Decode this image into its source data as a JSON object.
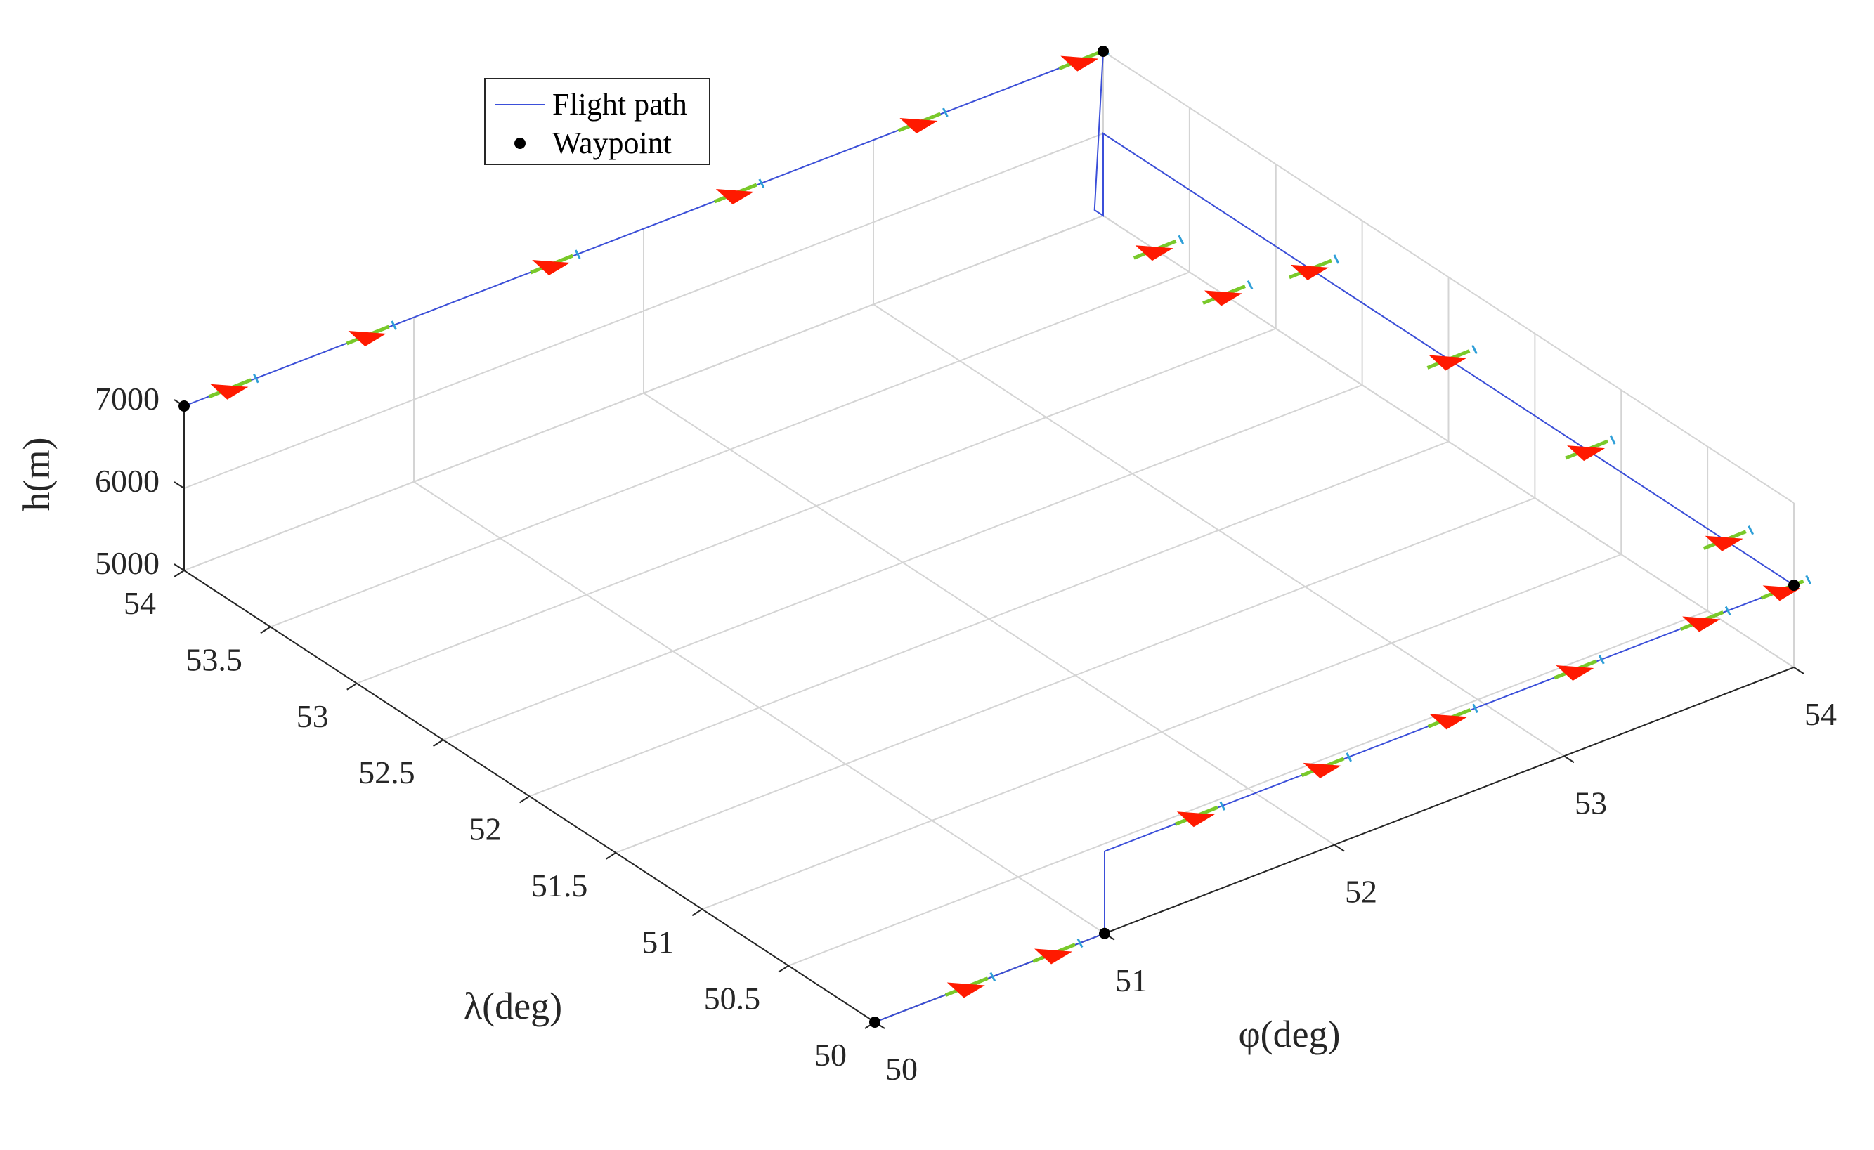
{
  "chart_data": {
    "type": "line3d",
    "xlabel": "φ(deg)",
    "ylabel": "λ(deg)",
    "zlabel": "h(m)",
    "xlim": [
      50,
      54
    ],
    "ylim": [
      50,
      54
    ],
    "zlim": [
      5000,
      7000
    ],
    "xticks": [
      "50",
      "51",
      "52",
      "53",
      "54"
    ],
    "yticks": [
      "50",
      "50.5",
      "51",
      "51.5",
      "52",
      "52.5",
      "53",
      "53.5",
      "54"
    ],
    "zticks": [
      "5000",
      "6000",
      "7000"
    ],
    "grid": true,
    "legend": {
      "position": "top-left",
      "entries": [
        "Flight path",
        "Waypoint"
      ]
    },
    "colors": {
      "path": "#3b4fd9",
      "waypoint": "#000000",
      "aircraft": "#ff1a00",
      "aircraft_wing": "#79c92a",
      "marker": "#2f9fd8",
      "grid": "#d4d4d4",
      "axis": "#262626"
    },
    "series": [
      {
        "name": "Flight path",
        "points": [
          [
            50,
            50,
            5000
          ],
          [
            51,
            50,
            5000
          ],
          [
            51,
            50,
            5000
          ],
          [
            51,
            50,
            6000
          ],
          [
            51.05,
            50,
            6000
          ],
          [
            54,
            50,
            6000
          ],
          [
            54,
            54,
            6000
          ],
          [
            54,
            54,
            5000
          ],
          [
            54.0,
            54.05,
            5000
          ],
          [
            54,
            54,
            7000
          ],
          [
            50,
            54,
            7000
          ]
        ]
      },
      {
        "name": "Waypoint",
        "points": [
          [
            50,
            50,
            5000
          ],
          [
            51,
            50,
            5000
          ],
          [
            54,
            50,
            6000
          ],
          [
            54,
            54,
            7000
          ],
          [
            50,
            54,
            7000
          ]
        ]
      }
    ],
    "aircraft_positions": [
      [
        50.4,
        50,
        5000
      ],
      [
        50.78,
        50,
        5000
      ],
      [
        51.4,
        50,
        6000
      ],
      [
        51.95,
        50,
        6000
      ],
      [
        52.5,
        50,
        6000
      ],
      [
        53.05,
        50,
        6000
      ],
      [
        53.6,
        50,
        6000
      ],
      [
        53.95,
        50,
        6000
      ],
      [
        54,
        50.4,
        6000
      ],
      [
        54,
        51.2,
        6000
      ],
      [
        54,
        52.0,
        6000
      ],
      [
        54,
        52.8,
        6000
      ],
      [
        54,
        53.3,
        5000
      ],
      [
        54,
        53.7,
        5000
      ],
      [
        53.9,
        54,
        7000
      ],
      [
        53.2,
        54,
        7000
      ],
      [
        52.4,
        54,
        7000
      ],
      [
        51.6,
        54,
        7000
      ],
      [
        50.8,
        54,
        7000
      ],
      [
        50.2,
        54,
        7000
      ]
    ]
  }
}
